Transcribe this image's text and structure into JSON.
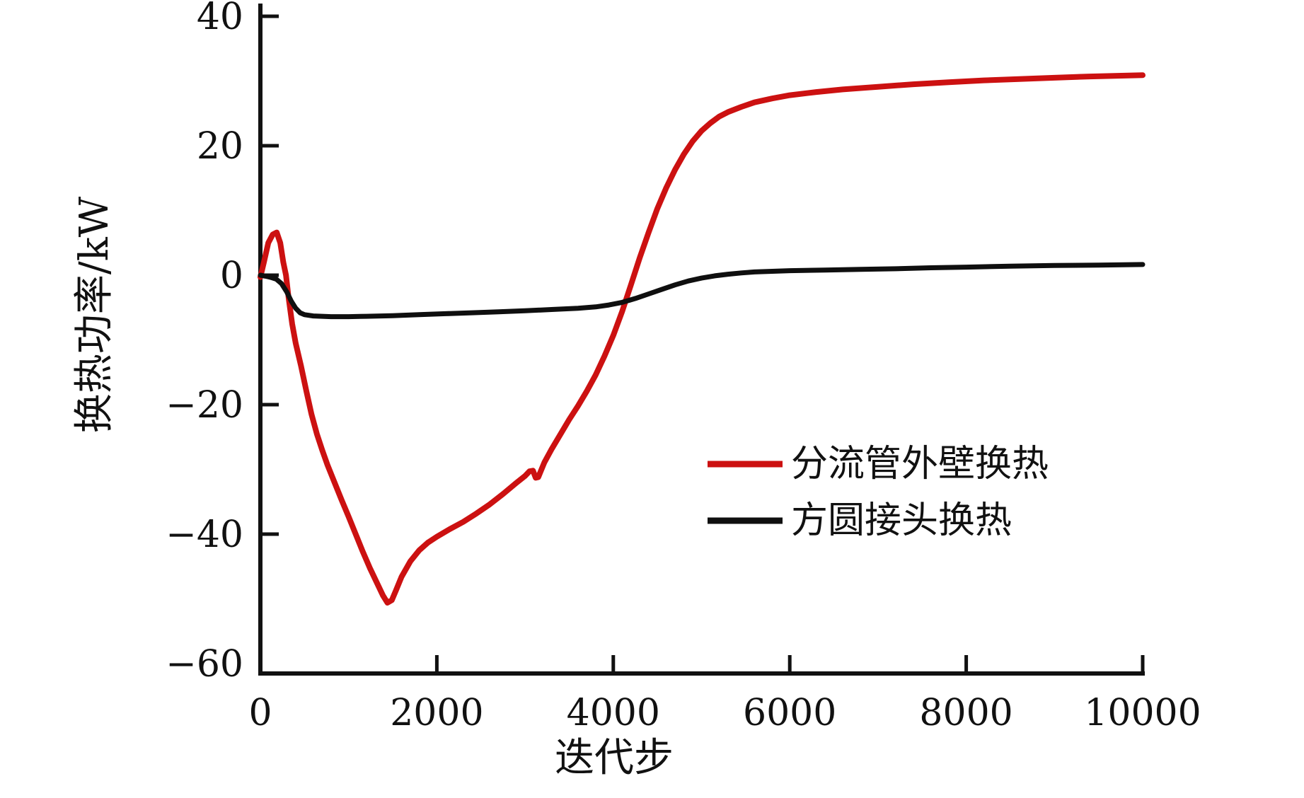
{
  "figure": {
    "background": "#ffffff",
    "axis_color": "#111111"
  },
  "chart_data": {
    "type": "line",
    "title": "",
    "xlabel": "迭代步",
    "ylabel": "换热功率/kW",
    "xlim": [
      0,
      10000
    ],
    "ylim": [
      -60,
      40
    ],
    "grid": false,
    "legend_position": "center-right",
    "x_ticks": [
      {
        "value": 0,
        "label": "0"
      },
      {
        "value": 2000,
        "label": "2000"
      },
      {
        "value": 4000,
        "label": "4000"
      },
      {
        "value": 6000,
        "label": "6000"
      },
      {
        "value": 8000,
        "label": "8000"
      },
      {
        "value": 10000,
        "label": "10000"
      }
    ],
    "y_ticks": [
      {
        "value": 40,
        "label": "40"
      },
      {
        "value": 20,
        "label": "20"
      },
      {
        "value": 0,
        "label": "0"
      },
      {
        "value": -20,
        "label": "−20"
      },
      {
        "value": -40,
        "label": "−40"
      },
      {
        "value": -60,
        "label": "−60"
      }
    ],
    "series": [
      {
        "name": "分流管外壁换热",
        "color": "#cc1111",
        "width": 8,
        "points": [
          [
            0,
            -0.3
          ],
          [
            40,
            2
          ],
          [
            90,
            5
          ],
          [
            140,
            6.3
          ],
          [
            185,
            6.6
          ],
          [
            225,
            5
          ],
          [
            260,
            2
          ],
          [
            290,
            0
          ],
          [
            320,
            -3.5
          ],
          [
            360,
            -7.5
          ],
          [
            400,
            -10.5
          ],
          [
            460,
            -14
          ],
          [
            520,
            -17.8
          ],
          [
            580,
            -21.5
          ],
          [
            640,
            -24.5
          ],
          [
            700,
            -27
          ],
          [
            760,
            -29.3
          ],
          [
            840,
            -32
          ],
          [
            920,
            -34.7
          ],
          [
            1000,
            -37.3
          ],
          [
            1080,
            -40
          ],
          [
            1160,
            -42.7
          ],
          [
            1240,
            -45.2
          ],
          [
            1320,
            -47.5
          ],
          [
            1390,
            -49.5
          ],
          [
            1440,
            -50.6
          ],
          [
            1490,
            -50.2
          ],
          [
            1540,
            -48.6
          ],
          [
            1600,
            -46.6
          ],
          [
            1700,
            -44.2
          ],
          [
            1800,
            -42.5
          ],
          [
            1900,
            -41.3
          ],
          [
            2000,
            -40.4
          ],
          [
            2150,
            -39.2
          ],
          [
            2300,
            -38.1
          ],
          [
            2450,
            -36.8
          ],
          [
            2600,
            -35.4
          ],
          [
            2750,
            -33.8
          ],
          [
            2900,
            -32.1
          ],
          [
            3000,
            -31
          ],
          [
            3050,
            -30.3
          ],
          [
            3090,
            -30.2
          ],
          [
            3120,
            -31.3
          ],
          [
            3150,
            -31.2
          ],
          [
            3220,
            -28.9
          ],
          [
            3300,
            -26.9
          ],
          [
            3400,
            -24.6
          ],
          [
            3500,
            -22.3
          ],
          [
            3600,
            -20.2
          ],
          [
            3700,
            -17.9
          ],
          [
            3800,
            -15.4
          ],
          [
            3900,
            -12.5
          ],
          [
            4000,
            -9.3
          ],
          [
            4100,
            -5.6
          ],
          [
            4200,
            -1.5
          ],
          [
            4300,
            2.7
          ],
          [
            4400,
            6.6
          ],
          [
            4500,
            10.3
          ],
          [
            4600,
            13.5
          ],
          [
            4700,
            16.3
          ],
          [
            4800,
            18.7
          ],
          [
            4900,
            20.7
          ],
          [
            5000,
            22.3
          ],
          [
            5100,
            23.5
          ],
          [
            5200,
            24.5
          ],
          [
            5300,
            25.2
          ],
          [
            5450,
            26
          ],
          [
            5600,
            26.7
          ],
          [
            5800,
            27.3
          ],
          [
            6000,
            27.8
          ],
          [
            6300,
            28.3
          ],
          [
            6600,
            28.7
          ],
          [
            7000,
            29.1
          ],
          [
            7400,
            29.5
          ],
          [
            7800,
            29.8
          ],
          [
            8200,
            30.1
          ],
          [
            8600,
            30.3
          ],
          [
            9000,
            30.5
          ],
          [
            9400,
            30.7
          ],
          [
            10000,
            30.9
          ]
        ]
      },
      {
        "name": "方圆接头换热",
        "color": "#0f0f0f",
        "width": 7,
        "points": [
          [
            0,
            0
          ],
          [
            60,
            -0.15
          ],
          [
            120,
            -0.35
          ],
          [
            180,
            -0.6
          ],
          [
            240,
            -1.3
          ],
          [
            300,
            -2.6
          ],
          [
            350,
            -4
          ],
          [
            400,
            -5.1
          ],
          [
            450,
            -5.8
          ],
          [
            500,
            -6.1
          ],
          [
            600,
            -6.3
          ],
          [
            800,
            -6.4
          ],
          [
            1000,
            -6.4
          ],
          [
            1200,
            -6.35
          ],
          [
            1500,
            -6.25
          ],
          [
            1800,
            -6.1
          ],
          [
            2100,
            -5.95
          ],
          [
            2400,
            -5.8
          ],
          [
            2700,
            -5.65
          ],
          [
            3000,
            -5.5
          ],
          [
            3300,
            -5.3
          ],
          [
            3600,
            -5.1
          ],
          [
            3800,
            -4.9
          ],
          [
            3950,
            -4.6
          ],
          [
            4100,
            -4.2
          ],
          [
            4250,
            -3.6
          ],
          [
            4400,
            -2.9
          ],
          [
            4550,
            -2.2
          ],
          [
            4700,
            -1.5
          ],
          [
            4850,
            -0.9
          ],
          [
            5000,
            -0.45
          ],
          [
            5150,
            -0.1
          ],
          [
            5300,
            0.15
          ],
          [
            5450,
            0.35
          ],
          [
            5600,
            0.5
          ],
          [
            5800,
            0.6
          ],
          [
            6000,
            0.7
          ],
          [
            6400,
            0.8
          ],
          [
            6800,
            0.9
          ],
          [
            7200,
            1
          ],
          [
            7600,
            1.15
          ],
          [
            8000,
            1.25
          ],
          [
            8500,
            1.4
          ],
          [
            9000,
            1.5
          ],
          [
            9500,
            1.55
          ],
          [
            10000,
            1.65
          ]
        ]
      }
    ]
  }
}
